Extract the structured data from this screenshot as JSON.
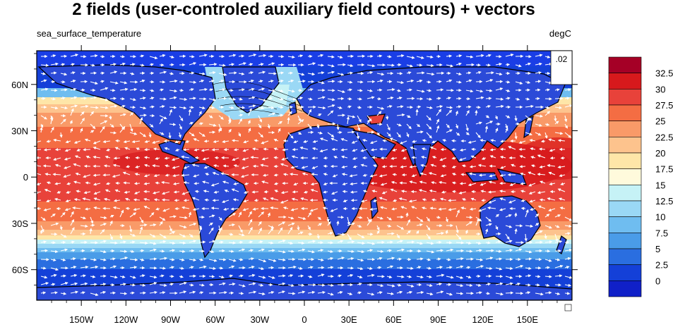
{
  "title": "2 fields (user-controled auxiliary field contours) + vectors",
  "left_string": "sea_surface_temperature",
  "right_string": "degC",
  "ref_vector_label": ".02",
  "x_ticks": [
    "150W",
    "120W",
    "90W",
    "60W",
    "30W",
    "0",
    "30E",
    "60E",
    "90E",
    "120E",
    "150E"
  ],
  "y_ticks": [
    "60N",
    "30N",
    "0",
    "30S",
    "60S"
  ],
  "colorbar": {
    "labels": [
      "32.5",
      "30",
      "27.5",
      "25",
      "22.5",
      "20",
      "17.5",
      "15",
      "12.5",
      "10",
      "7.5",
      "5",
      "2.5",
      "0"
    ],
    "colors": [
      "#a50026",
      "#d7191c",
      "#e8423a",
      "#f46d43",
      "#f99a68",
      "#fdc38d",
      "#fee6a8",
      "#fffadc",
      "#c6f2f6",
      "#9ad8f5",
      "#6fbdf0",
      "#4a9ce8",
      "#2a6ee0",
      "#1440d8",
      "#1020c8"
    ]
  },
  "land_color": "#2b4ad8"
}
